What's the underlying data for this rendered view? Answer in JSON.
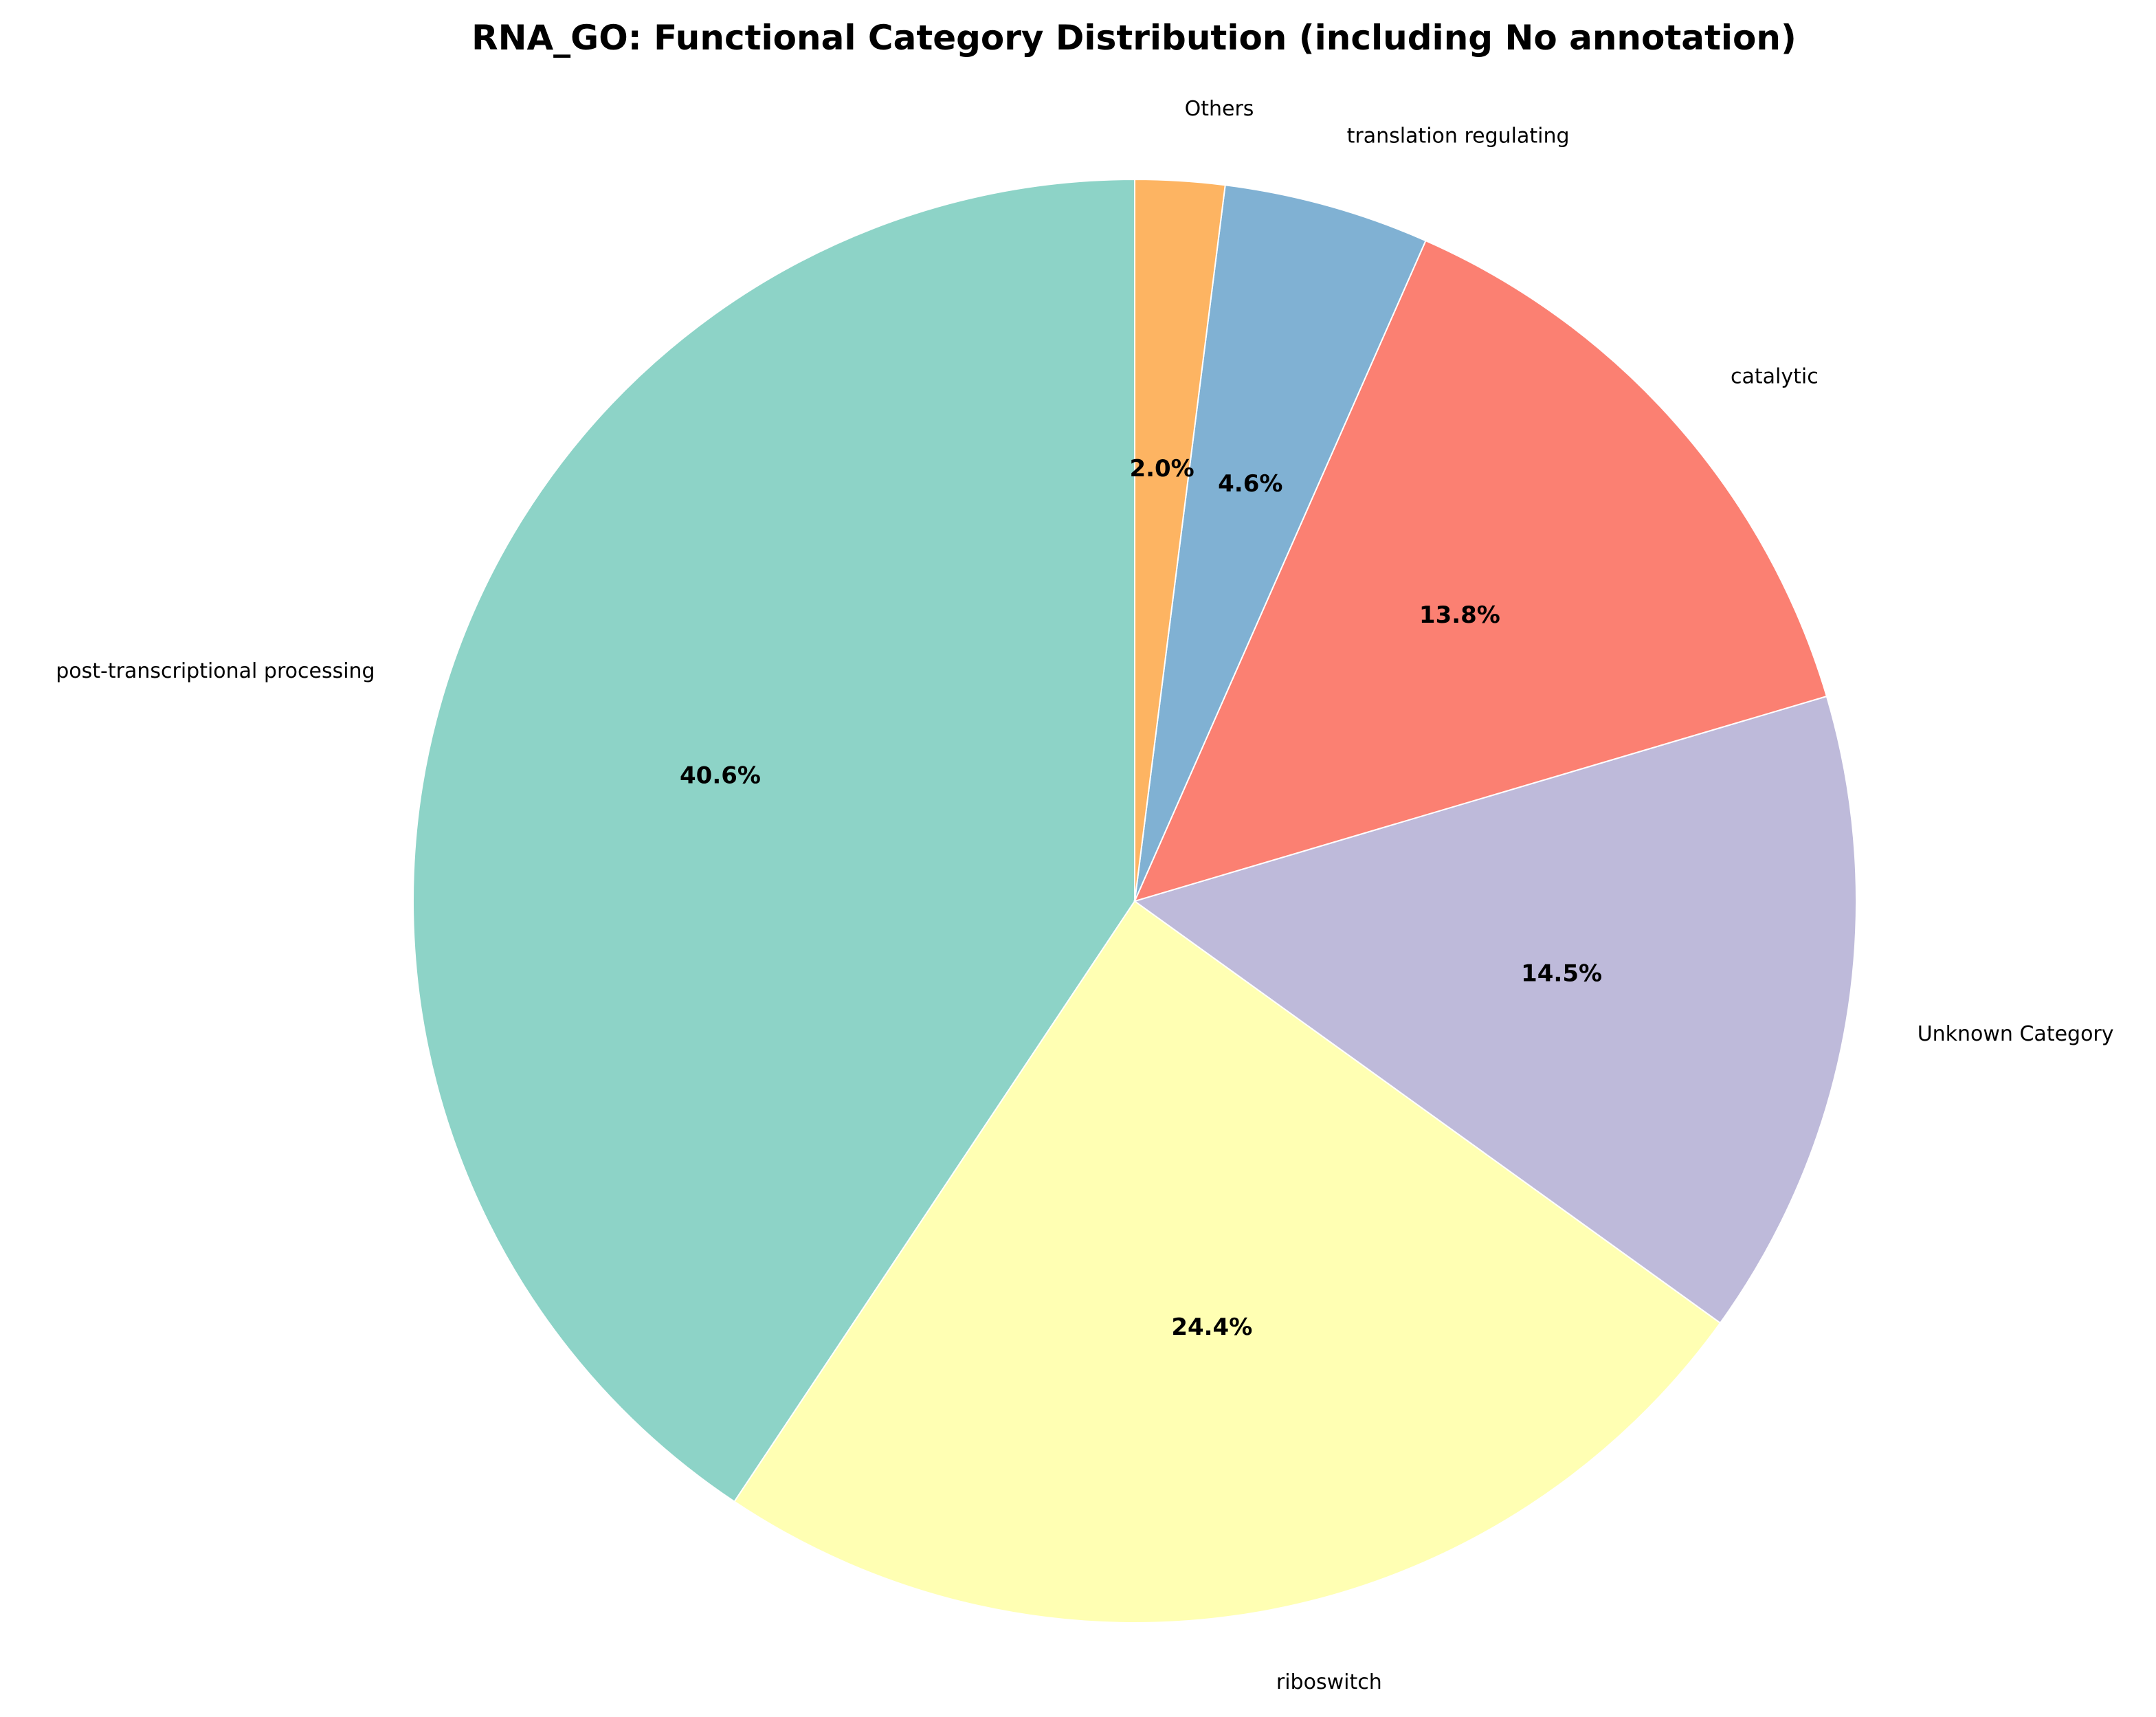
{
  "chart_data": {
    "type": "pie",
    "title": "RNA_GO: Functional Category Distribution (including No annotation)",
    "start_angle_deg": 90,
    "direction": "counterclockwise",
    "slices": [
      {
        "label": "post-transcriptional processing",
        "value": 40.6,
        "pct_label": "40.6%",
        "color": "#8dd3c7"
      },
      {
        "label": "riboswitch",
        "value": 24.4,
        "pct_label": "24.4%",
        "color": "#ffffb3"
      },
      {
        "label": "Unknown Category",
        "value": 14.5,
        "pct_label": "14.5%",
        "color": "#bebada"
      },
      {
        "label": "catalytic",
        "value": 13.8,
        "pct_label": "13.8%",
        "color": "#fb8072"
      },
      {
        "label": "translation regulating",
        "value": 4.6,
        "pct_label": "4.6%",
        "color": "#80b1d3"
      },
      {
        "label": "Others",
        "value": 2.0,
        "pct_label": "2.0%",
        "color": "#fdb462"
      }
    ]
  }
}
